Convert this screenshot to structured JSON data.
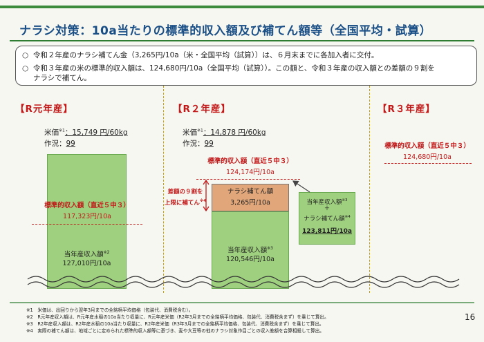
{
  "title": "ナラシ対策：10a当たりの標準的収入額及び補てん額等（全国平均・試算）",
  "notes": [
    {
      "bullet": "○",
      "text": "令和２年産のナラシ補てん金（3,265円/10a（米・全国平均（試算））は、６月末までに各加入者に交付。"
    },
    {
      "bullet": "○",
      "text": "令和３年産の米の標準的収入額は、124,680円/10a（全国平均（試算））。この額と、令和３年産の収入額との差額の９割を"
    },
    {
      "bullet": "",
      "text": "ナラシで補てん。"
    }
  ],
  "years": [
    "【R元年産】",
    "【R２年産】",
    "【R３年産】"
  ],
  "r1": {
    "price_label": "米価",
    "price_sup": "※1",
    "price_value": "：15,749 円/60kg",
    "crop_label": "作況：",
    "crop_value": "99",
    "standard_label": "標準的収入額（直近５中３）",
    "standard_value": "117,323円/10a",
    "income_label": "当年産収入額",
    "income_sup": "※2",
    "income_value": "127,010円/10a"
  },
  "r2": {
    "price_label": "米価",
    "price_sup": "※1",
    "price_value": "：14,878 円/60kg",
    "crop_label": "作況：",
    "crop_value": "99",
    "standard_label": "標準的収入額（直近５中３）",
    "standard_value": "124,174円/10a",
    "diff_label_1": "差額の９割を",
    "diff_label_2": "上限に補てん",
    "diff_sup": "※4",
    "compensation_label": "ナラシ補てん額",
    "compensation_value": "3,265円/10a",
    "income_label": "当年産収入額",
    "income_sup": "※3",
    "income_value": "120,546円/10a",
    "total_line1": "当年産収入額",
    "total_line1_sup": "※3",
    "total_plus": "＋",
    "total_line2": "ナラシ補てん額",
    "total_line2_sup": "※4",
    "total_value": "123,811円/10a"
  },
  "r3": {
    "standard_label": "標準的収入額（直近５中３）",
    "standard_value": "124,680円/10a"
  },
  "footnotes": [
    "※1　米価は、出回りから翌年3月までの全銘柄平均価格（包装代、消費税含む）。",
    "※2　R元年産収入額は、R元年産水稲の10a当たり収量に、R元年産米価（R2年3月までの全銘柄平均価格、包装代、消費税含まず）を乗じて算出。",
    "※3　R2年産収入額は、R2年産水稲の10a当たり収量に、R2年産米価（R3年3月までの全銘柄平均価格、包装代、消費税含まず）を乗じて算出。",
    "※4　実際の補てん額は、地域ごとに定められた標準的収入額等に基づき、麦や大豆等の他のナラシ対象作目ごとの収入差額を合算相殺して算出。"
  ],
  "page_number": "16",
  "colors": {
    "title": "#1a4f86",
    "red": "#c21818",
    "bar_green": "#9fd07f",
    "bar_orange": "#e1a77b",
    "divider": "#c8a200"
  }
}
